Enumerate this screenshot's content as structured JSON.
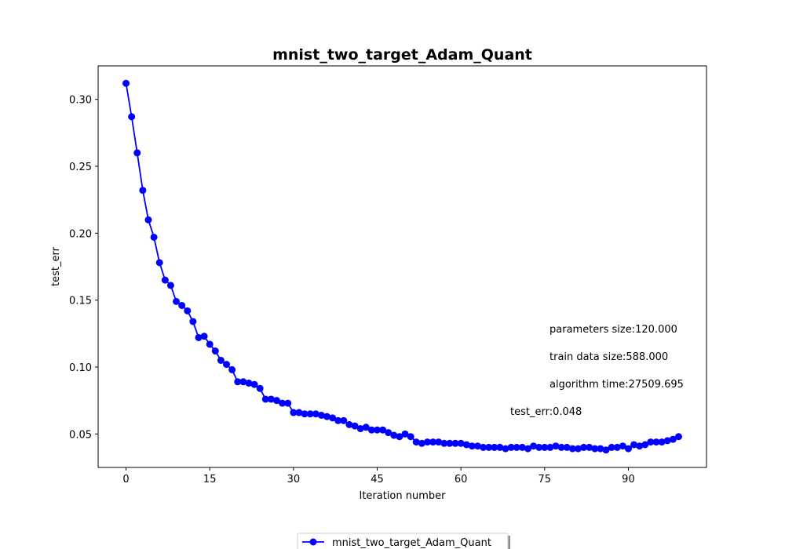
{
  "chart_data": {
    "type": "line",
    "title": "mnist_two_target_Adam_Quant",
    "xlabel": "Iteration number",
    "ylabel": "test_err",
    "xlim": [
      -5,
      104
    ],
    "ylim": [
      0.025,
      0.325
    ],
    "xticks": [
      0,
      15,
      30,
      45,
      60,
      75,
      90
    ],
    "yticks": [
      0.05,
      0.1,
      0.15,
      0.2,
      0.25,
      0.3
    ],
    "ytick_labels": [
      "0.05",
      "0.10",
      "0.15",
      "0.20",
      "0.25",
      "0.30"
    ],
    "grid": false,
    "legend_position": "bottom-center, outside",
    "series": [
      {
        "name": "mnist_two_target_Adam_Quant",
        "color": "#0000ff",
        "marker": "circle",
        "x": [
          0,
          1,
          2,
          3,
          4,
          5,
          6,
          7,
          8,
          9,
          10,
          11,
          12,
          13,
          14,
          15,
          16,
          17,
          18,
          19,
          20,
          21,
          22,
          23,
          24,
          25,
          26,
          27,
          28,
          29,
          30,
          31,
          32,
          33,
          34,
          35,
          36,
          37,
          38,
          39,
          40,
          41,
          42,
          43,
          44,
          45,
          46,
          47,
          48,
          49,
          50,
          51,
          52,
          53,
          54,
          55,
          56,
          57,
          58,
          59,
          60,
          61,
          62,
          63,
          64,
          65,
          66,
          67,
          68,
          69,
          70,
          71,
          72,
          73,
          74,
          75,
          76,
          77,
          78,
          79,
          80,
          81,
          82,
          83,
          84,
          85,
          86,
          87,
          88,
          89,
          90,
          91,
          92,
          93,
          94,
          95,
          96,
          97,
          98,
          99
        ],
        "values": [
          0.312,
          0.287,
          0.26,
          0.232,
          0.21,
          0.197,
          0.178,
          0.165,
          0.161,
          0.149,
          0.146,
          0.142,
          0.134,
          0.122,
          0.123,
          0.117,
          0.112,
          0.105,
          0.102,
          0.098,
          0.089,
          0.089,
          0.088,
          0.087,
          0.084,
          0.076,
          0.076,
          0.075,
          0.073,
          0.073,
          0.066,
          0.066,
          0.065,
          0.065,
          0.065,
          0.064,
          0.063,
          0.062,
          0.06,
          0.06,
          0.057,
          0.056,
          0.054,
          0.055,
          0.053,
          0.053,
          0.053,
          0.051,
          0.049,
          0.048,
          0.05,
          0.048,
          0.044,
          0.043,
          0.044,
          0.044,
          0.044,
          0.043,
          0.043,
          0.043,
          0.043,
          0.042,
          0.041,
          0.041,
          0.04,
          0.04,
          0.04,
          0.04,
          0.039,
          0.04,
          0.04,
          0.04,
          0.039,
          0.041,
          0.04,
          0.04,
          0.04,
          0.041,
          0.04,
          0.04,
          0.039,
          0.039,
          0.04,
          0.04,
          0.039,
          0.039,
          0.038,
          0.04,
          0.04,
          0.041,
          0.039,
          0.042,
          0.041,
          0.042,
          0.044,
          0.044,
          0.044,
          0.045,
          0.046,
          0.048
        ]
      }
    ],
    "annotations": [
      {
        "text": "parameters size:120.000"
      },
      {
        "text": "train data size:588.000"
      },
      {
        "text": "algorithm time:27509.695"
      },
      {
        "text": "test_err:0.048"
      }
    ]
  }
}
